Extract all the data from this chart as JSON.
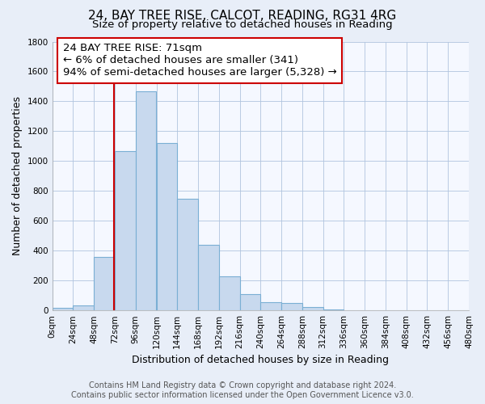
{
  "title": "24, BAY TREE RISE, CALCOT, READING, RG31 4RG",
  "subtitle": "Size of property relative to detached houses in Reading",
  "xlabel": "Distribution of detached houses by size in Reading",
  "ylabel": "Number of detached properties",
  "bin_edges": [
    0,
    24,
    48,
    72,
    96,
    120,
    144,
    168,
    192,
    216,
    240,
    264,
    288,
    312,
    336,
    360,
    384,
    408,
    432,
    456,
    480
  ],
  "bar_values": [
    15,
    35,
    360,
    1065,
    1465,
    1120,
    745,
    440,
    230,
    110,
    55,
    50,
    20,
    5,
    2,
    1,
    0,
    0,
    0,
    0
  ],
  "bar_color": "#c8d9ee",
  "bar_edge_color": "#7aafd4",
  "property_line_x": 71,
  "property_line_color": "#cc0000",
  "annotation_line1": "24 BAY TREE RISE: 71sqm",
  "annotation_line2": "← 6% of detached houses are smaller (341)",
  "annotation_line3": "94% of semi-detached houses are larger (5,328) →",
  "annotation_box_color": "#ffffff",
  "annotation_box_edge_color": "#cc0000",
  "ylim": [
    0,
    1800
  ],
  "yticks": [
    0,
    200,
    400,
    600,
    800,
    1000,
    1200,
    1400,
    1600,
    1800
  ],
  "footer_text": "Contains HM Land Registry data © Crown copyright and database right 2024.\nContains public sector information licensed under the Open Government Licence v3.0.",
  "background_color": "#e8eef8",
  "plot_background_color": "#f5f8ff",
  "title_fontsize": 11,
  "subtitle_fontsize": 9.5,
  "axis_label_fontsize": 9,
  "tick_fontsize": 7.5,
  "footer_fontsize": 7,
  "annotation_fontsize": 9.5
}
